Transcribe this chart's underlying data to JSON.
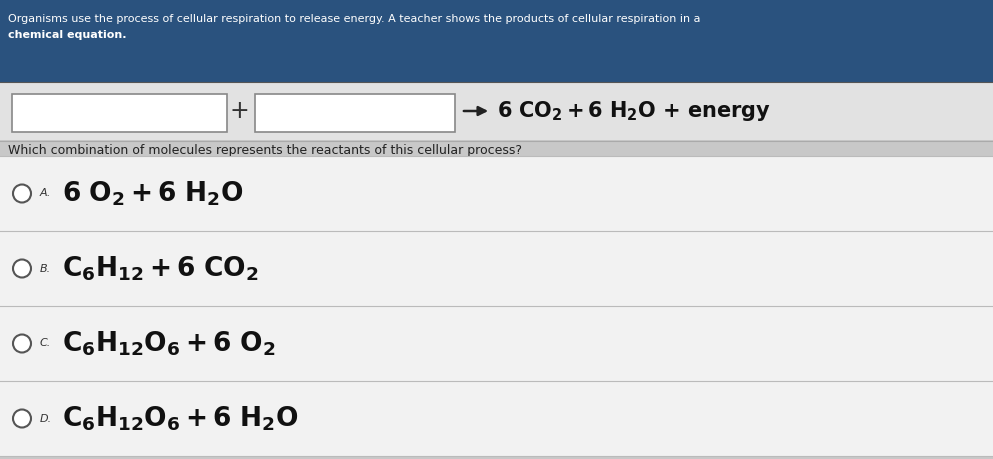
{
  "bg_color": "#c8c8c8",
  "header_bg": "#2a527e",
  "question_text": "Which combination of molecules represents the reactants of this cellular process?",
  "text_color": "#111111",
  "white": "#ffffff",
  "header_line1": "Organisms use the process of cellular respiration to release energy. A teacher shows the products of cellular respiration in a",
  "header_line2": "chemical equation.",
  "option_labels": [
    "A.",
    "B.",
    "C.",
    "D."
  ],
  "option_formulas": [
    "$\\mathregular{6\\ O_2 + 6\\ H_2O}$",
    "$\\mathregular{C_6H_{12} + 6\\ CO_2}$",
    "$\\mathregular{C_6H_{12}O_6 + 6\\ O_2}$",
    "$\\mathregular{C_6H_{12}O_6 + 6\\ H_2O}$"
  ],
  "rhs_formula": "$\\mathregular{6\\ CO_2 + 6\\ H_2O}$ + energy"
}
